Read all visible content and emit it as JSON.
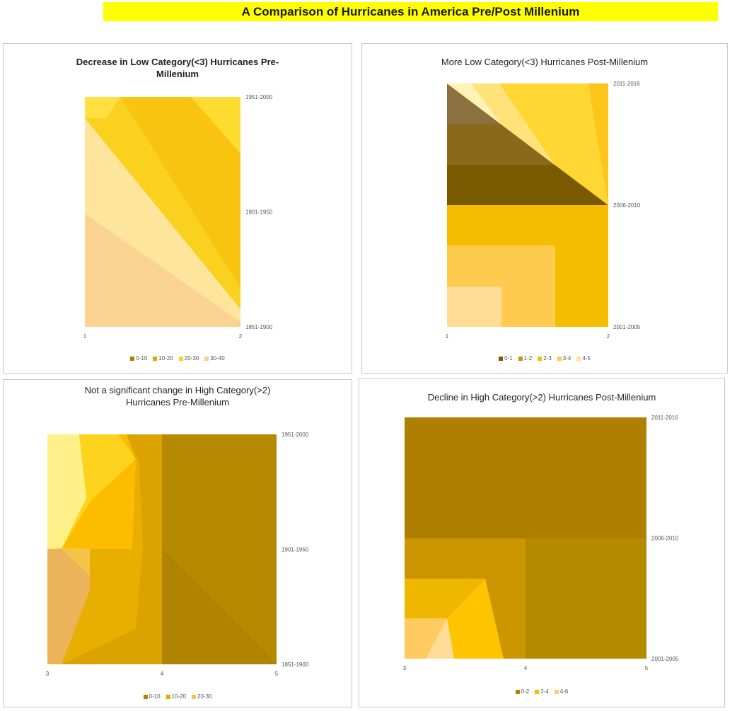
{
  "banner": {
    "title": "A Comparison of Hurricanes in America Pre/Post Millenium"
  },
  "colors": {
    "banner_bg": "#ffff00"
  },
  "chart_data": [
    {
      "type": "surface-contour",
      "title": "Decrease in Low Category(<3) Hurricanes Pre-Millenium",
      "x_ticks": [
        "1",
        "2"
      ],
      "y_ticks": [
        "1851-1900",
        "1901-1950",
        "1951-2000"
      ],
      "legend": [
        {
          "name": "0-10",
          "color": "#b07d00"
        },
        {
          "name": "10-20",
          "color": "#ddab00"
        },
        {
          "name": "20-30",
          "color": "#ffd21e"
        },
        {
          "name": "30-40",
          "color": "#fad08a"
        }
      ]
    },
    {
      "type": "surface-contour",
      "title": "More Low Category(<3) Hurricanes Post-Millenium",
      "x_ticks": [
        "1",
        "2"
      ],
      "y_ticks": [
        "2001-2005",
        "2006-2010",
        "2011-2016"
      ],
      "legend": [
        {
          "name": "0-1",
          "color": "#7a5a00"
        },
        {
          "name": "1-2",
          "color": "#c89600"
        },
        {
          "name": "2-3",
          "color": "#f5bd00"
        },
        {
          "name": "3-4",
          "color": "#ffca4a"
        },
        {
          "name": "4-5",
          "color": "#ffdf9a"
        }
      ]
    },
    {
      "type": "surface-contour",
      "title": "Not a significant change in High Category(>2) Hurricanes Pre-Millenium",
      "x_ticks": [
        "3",
        "4",
        "5"
      ],
      "y_ticks": [
        "1851-1900",
        "1901-1950",
        "1951-2000"
      ],
      "legend": [
        {
          "name": "0-10",
          "color": "#b28600"
        },
        {
          "name": "10-20",
          "color": "#e2a900"
        },
        {
          "name": "20-30",
          "color": "#f5c44a"
        }
      ]
    },
    {
      "type": "surface-contour",
      "title": "Decline in High Category(>2) Hurricanes Post-Millenium",
      "x_ticks": [
        "3",
        "4",
        "5"
      ],
      "y_ticks": [
        "2001-2005",
        "2006-2010",
        "2011-2016"
      ],
      "legend": [
        {
          "name": "0-2",
          "color": "#b48500"
        },
        {
          "name": "2-4",
          "color": "#f5bd00"
        },
        {
          "name": "4-6",
          "color": "#ffcf70"
        }
      ]
    }
  ]
}
